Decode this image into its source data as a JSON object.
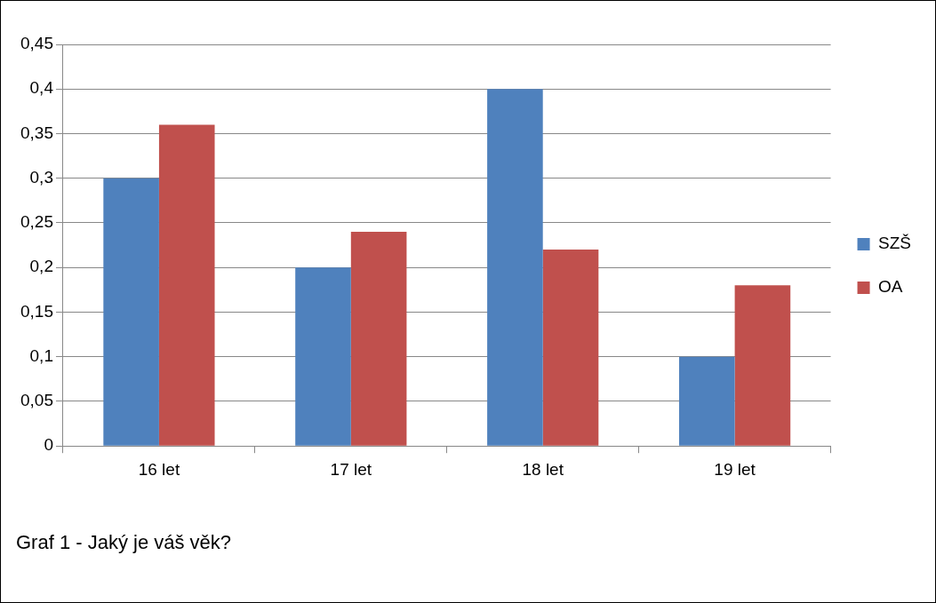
{
  "chart_data": {
    "type": "bar",
    "categories": [
      "16 let",
      "17 let",
      "18 let",
      "19 let"
    ],
    "series": [
      {
        "name": "SZŠ",
        "color": "#4f81bd",
        "values": [
          0.3,
          0.2,
          0.4,
          0.1
        ]
      },
      {
        "name": "OA",
        "color": "#c0504d",
        "values": [
          0.36,
          0.24,
          0.22,
          0.18
        ]
      }
    ],
    "ylim": [
      0,
      0.45
    ],
    "yticks": [
      {
        "value": 0,
        "label": "0"
      },
      {
        "value": 0.05,
        "label": "0,05"
      },
      {
        "value": 0.1,
        "label": "0,1"
      },
      {
        "value": 0.15,
        "label": "0,15"
      },
      {
        "value": 0.2,
        "label": "0,2"
      },
      {
        "value": 0.25,
        "label": "0,25"
      },
      {
        "value": 0.3,
        "label": "0,3"
      },
      {
        "value": 0.35,
        "label": "0,35"
      },
      {
        "value": 0.4,
        "label": "0,4"
      },
      {
        "value": 0.45,
        "label": "0,45"
      }
    ],
    "grid": "y",
    "legend": "right",
    "annotations": [
      "Graf 1 - Jaký je váš věk?"
    ]
  }
}
